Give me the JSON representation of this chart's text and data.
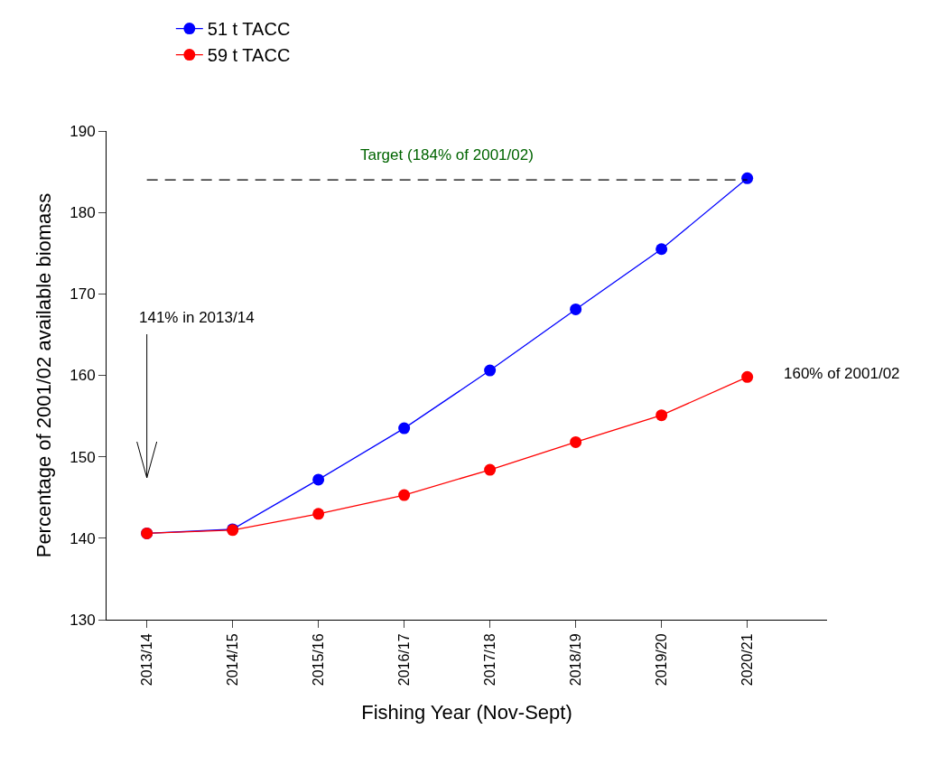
{
  "chart_data": {
    "type": "line",
    "xlabel": "Fishing Year (Nov-Sept)",
    "ylabel": "Percentage of 2001/02 available biomass",
    "categories": [
      "2013/14",
      "2014/15",
      "2015/16",
      "2016/17",
      "2017/18",
      "2018/19",
      "2019/20",
      "2020/21"
    ],
    "series": [
      {
        "name": "51 t TACC",
        "color": "#0000ff",
        "values": [
          140.6,
          141.1,
          147.2,
          153.5,
          160.6,
          168.1,
          175.5,
          184.2
        ]
      },
      {
        "name": "59 t TACC",
        "color": "#ff0000",
        "values": [
          140.6,
          141.0,
          143.0,
          145.3,
          148.4,
          151.8,
          155.1,
          159.8
        ]
      }
    ],
    "ylim": [
      130,
      190
    ],
    "yticks": [
      130,
      140,
      150,
      160,
      170,
      180,
      190
    ],
    "ref_lines": [
      {
        "axis": "y",
        "value": 184,
        "label": "Target (184% of 2001/02)",
        "color": "#000000",
        "line_style": "dashed"
      }
    ],
    "annotations": [
      "141% in 2013/14",
      {
        "text": "160% of 2001/02",
        "x": "2020/21",
        "y": 159.8
      }
    ],
    "marker": "circle",
    "line_style": "solid",
    "grid": false,
    "legend": "top left"
  }
}
